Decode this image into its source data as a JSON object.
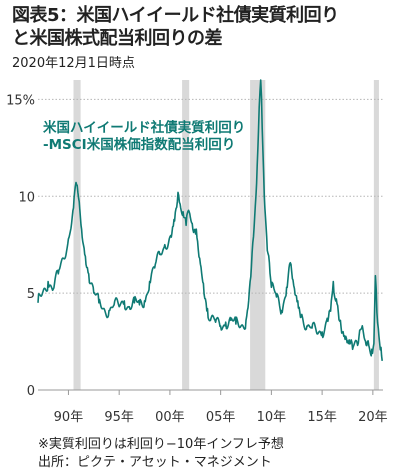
{
  "title": "図表5：米国ハイイールド社債実質利回り\nと米国株式配当利回りの差",
  "subtitle": "2020年12月1日時点",
  "notes": [
    "※実質利回りは利回り−10年インフレ予想",
    "出所：ピクテ・アセット・マネジメント"
  ],
  "colors": {
    "line": "#0f7a74",
    "shade": "#d9d9d9",
    "axis": "#999999"
  },
  "chart_data": {
    "type": "line",
    "title": "",
    "xlabel": "",
    "ylabel": "",
    "ylim": [
      0,
      16
    ],
    "xlim": [
      1987.0,
      2021.0
    ],
    "grid": true,
    "y_ticks": [
      {
        "value": 0,
        "label": "0"
      },
      {
        "value": 5,
        "label": "5"
      },
      {
        "value": 10,
        "label": "10"
      },
      {
        "value": 15,
        "label": "15%"
      }
    ],
    "x_ticks": [
      {
        "value": 1990,
        "label": "90年"
      },
      {
        "value": 1995,
        "label": "95年"
      },
      {
        "value": 2000,
        "label": "00年"
      },
      {
        "value": 2005,
        "label": "05年"
      },
      {
        "value": 2010,
        "label": "10年"
      },
      {
        "value": 2015,
        "label": "15年"
      },
      {
        "value": 2020,
        "label": "20年"
      }
    ],
    "recession_bands": [
      [
        1990.5,
        1991.2
      ],
      [
        2001.2,
        2001.9
      ],
      [
        2007.9,
        2009.4
      ],
      [
        2020.1,
        2020.6
      ]
    ],
    "series": [
      {
        "name": "米国ハイイールド社債実質利回り\n-MSCI米国株価指数配当利回り",
        "x": [
          1987.0,
          1987.5,
          1988.0,
          1988.5,
          1989.0,
          1989.5,
          1990.0,
          1990.5,
          1990.8,
          1991.0,
          1991.3,
          1991.6,
          1992.0,
          1992.5,
          1993.0,
          1993.5,
          1994.0,
          1994.5,
          1995.0,
          1995.5,
          1996.0,
          1996.5,
          1997.0,
          1997.5,
          1998.0,
          1998.5,
          1999.0,
          1999.5,
          2000.0,
          2000.4,
          2000.8,
          2001.0,
          2001.3,
          2001.6,
          2001.9,
          2002.2,
          2002.6,
          2003.0,
          2003.3,
          2003.7,
          2004.0,
          2004.5,
          2005.0,
          2005.5,
          2006.0,
          2006.5,
          2007.0,
          2007.5,
          2007.9,
          2008.3,
          2008.6,
          2008.8,
          2008.95,
          2009.1,
          2009.3,
          2009.6,
          2010.0,
          2010.5,
          2011.0,
          2011.5,
          2011.8,
          2012.2,
          2012.6,
          2013.0,
          2013.5,
          2014.0,
          2014.5,
          2015.0,
          2015.5,
          2015.9,
          2016.1,
          2016.4,
          2016.8,
          2017.2,
          2017.6,
          2018.0,
          2018.5,
          2018.9,
          2019.2,
          2019.6,
          2019.9,
          2020.1,
          2020.25,
          2020.4,
          2020.6,
          2020.8,
          2020.92
        ],
        "y": [
          4.5,
          5.1,
          5.6,
          5.2,
          6.0,
          6.8,
          7.8,
          9.4,
          10.6,
          9.9,
          8.3,
          7.0,
          6.0,
          5.0,
          4.5,
          4.2,
          4.1,
          4.4,
          4.3,
          4.6,
          4.3,
          4.5,
          4.4,
          4.6,
          5.6,
          6.3,
          7.0,
          7.5,
          7.9,
          8.8,
          10.2,
          9.6,
          9.2,
          8.5,
          9.2,
          8.6,
          8.3,
          6.5,
          5.5,
          4.2,
          3.6,
          3.5,
          3.3,
          3.5,
          3.6,
          3.4,
          3.3,
          3.6,
          5.6,
          8.4,
          11.6,
          14.6,
          16.0,
          13.5,
          10.0,
          7.2,
          5.3,
          4.8,
          4.1,
          5.3,
          6.5,
          5.4,
          4.6,
          3.9,
          3.3,
          3.2,
          2.9,
          3.0,
          3.7,
          4.6,
          5.6,
          4.7,
          3.6,
          2.8,
          2.4,
          2.1,
          2.3,
          3.2,
          2.6,
          2.3,
          2.1,
          2.4,
          5.9,
          4.0,
          2.8,
          2.2,
          1.5
        ]
      }
    ]
  }
}
